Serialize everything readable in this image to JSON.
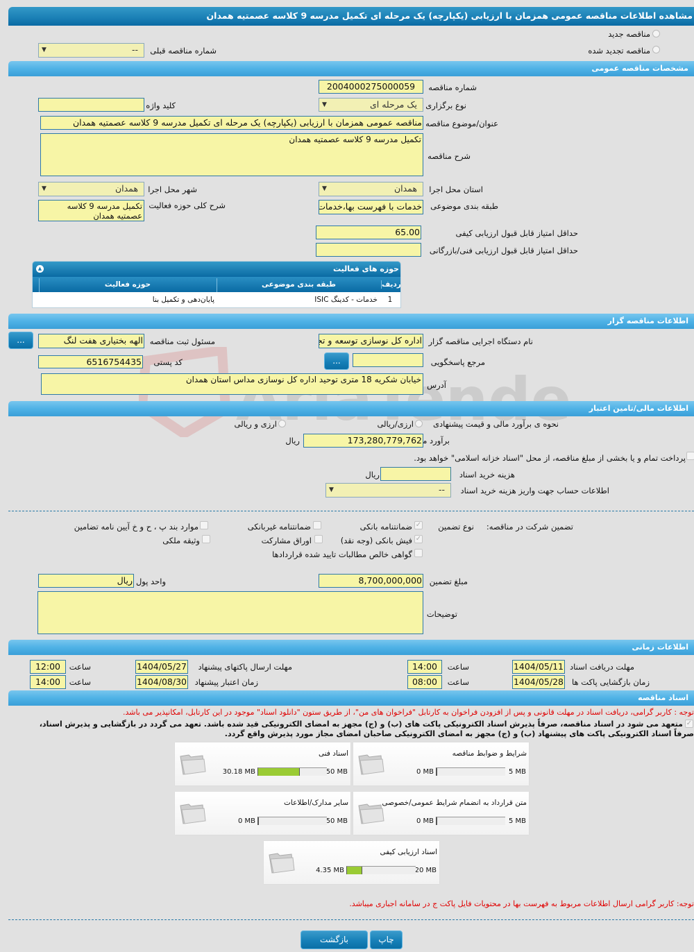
{
  "title": "مشاهده اطلاعات مناقصه عمومی همزمان با ارزیابی (یکپارچه) یک مرحله ای تکمیل مدرسه 9 کلاسه عصمتیه همدان",
  "watermark": "AriaTender.neT",
  "tender_type": {
    "new_label": "مناقصه جدید",
    "renewed_label": "مناقصه تجدید شده",
    "prev_number_label": "شماره مناقصه قبلی",
    "prev_number_value": "--"
  },
  "general": {
    "section_title": "مشخصات مناقصه عمومی",
    "number_label": "شماره مناقصه",
    "number_value": "2004000275000059",
    "holding_type_label": "نوع برگزاری",
    "holding_type_value": "یک مرحله ای",
    "keyword_label": "کلید واژه",
    "keyword_value": "",
    "subject_label": "عنوان/موضوع مناقصه",
    "subject_value": "مناقصه عمومی همزمان با ارزیابی (یکپارچه) یک مرحله ای تکمیل مدرسه 9 کلاسه عصمتیه همدان",
    "description_label": "شرح مناقصه",
    "description_value": "تکمیل مدرسه 9 کلاسه عصمتیه همدان",
    "province_label": "استان محل اجرا",
    "province_value": "همدان",
    "city_label": "شهر محل اجرا",
    "city_value": "همدان",
    "category_label": "طبقه بندی موضوعی",
    "category_value": "خدمات با فهرست بها،خدمات",
    "activity_desc_label": "شرح کلی حوزه فعالیت",
    "activity_desc_value": "تکمیل مدرسه 9 کلاسه عصمتیه همدان",
    "min_quality_label": "حداقل امتیاز قابل قبول ارزیابی کیفی",
    "min_quality_value": "65.00",
    "min_tech_label": "حداقل امتیاز قابل قبول ارزیابی فنی/بازرگانی",
    "min_tech_value": ""
  },
  "activities": {
    "title": "حوزه های فعالیت",
    "columns": [
      "ردیف",
      "طبقه بندی موضوعی",
      "حوزه فعالیت"
    ],
    "rows": [
      [
        "1",
        "خدمات - کدینگ ISIC",
        "پایان‌دهی و تکمیل بنا"
      ]
    ]
  },
  "organizer": {
    "section_title": "اطلاعات مناقصه گزار",
    "org_label": "نام دستگاه اجرایی مناقصه گزار",
    "org_value": "اداره کل نوسازی توسعه و تجهیز مدارس",
    "registrar_label": "مسئول ثبت مناقصه",
    "registrar_value": "الهه بختیاری هفت لنگ",
    "ref_label": "مرجع پاسخگویی",
    "ref_value": "",
    "postal_label": "کد پستی",
    "postal_value": "6516754435",
    "address_label": "آدرس",
    "address_value": "خیابان شکریه 18 متری توحید اداره کل نوسازی مداس استان همدان",
    "browse_label": "..."
  },
  "finance": {
    "section_title": "اطلاعات مالی/تامین اعتبار",
    "method_label": "نحوه ی برآورد مالی و قیمت پیشنهادی",
    "opt1": "ارزی/ریالی",
    "opt2": "ارزی و ریالی",
    "estimate_label": "برآورد مالی",
    "estimate_value": "173,280,779,762",
    "rial": "ریال",
    "treasury_text": "پرداخت تمام و یا بخشی از مبلغ مناقصه، از محل \"اسناد خزانه اسلامی\" خواهد بود.",
    "doc_cost_label": "هزینه خرید اسناد",
    "doc_cost_value": "",
    "account_label": "اطلاعات حساب جهت واریز هزینه خرید اسناد",
    "account_value": "--"
  },
  "guarantee": {
    "label": "تضمین شرکت در مناقصه:",
    "type_label": "نوع تضمین",
    "options": [
      {
        "label": "ضمانتنامه بانکی",
        "checked": true
      },
      {
        "label": "ضمانتنامه غیربانکی",
        "checked": false
      },
      {
        "label": "موارد بند پ ، ح و خ آیین نامه تضامین",
        "checked": false
      },
      {
        "label": "فیش بانکی (وجه نقد)",
        "checked": true
      },
      {
        "label": "اوراق مشارکت",
        "checked": false
      },
      {
        "label": "وثیقه ملکی",
        "checked": false
      },
      {
        "label": "گواهی خالص مطالبات تایید شده قراردادها",
        "checked": false
      }
    ],
    "amount_label": "مبلغ تضمین",
    "amount_value": "8,700,000,000",
    "currency_label": "واحد پول",
    "currency_value": "ریال",
    "notes_label": "توضیحات",
    "notes_value": ""
  },
  "timing": {
    "section_title": "اطلاعات زمانی",
    "hour_label": "ساعت",
    "doc_deadline_label": "مهلت دریافت اسناد",
    "doc_deadline_date": "1404/05/11",
    "doc_deadline_time": "14:00",
    "submit_deadline_label": "مهلت ارسال پاکتهای پیشنهاد",
    "submit_deadline_date": "1404/05/27",
    "submit_deadline_time": "12:00",
    "opening_label": "زمان بازگشایی پاکت ها",
    "opening_date": "1404/05/28",
    "opening_time": "08:00",
    "validity_label": "زمان اعتبار پیشنهاد",
    "validity_date": "1404/08/30",
    "validity_time": "14:00"
  },
  "documents": {
    "section_title": "اسناد مناقصه",
    "note1": "توجه : کاربر گرامی، دریافت اسناد در مهلت قانونی و پس از افزودن فراخوان به کارتابل \"فراخوان های من\"، از طریق ستون \"دانلود اسناد\" موجود در این کارتابل، امکانپذیر می باشد.",
    "commit_line1": "متعهد می شود در اسناد مناقصه، صرفاً پذیرش اسناد الکترونیکی پاکت های (ب) و (ج) مجهز به امضای الکترونیکی قید شده باشد. تعهد می گردد در بازگشایی و پذیرش اسناد،",
    "commit_line2": "صرفاً اسناد الکترونیکی پاکت های پیشنهاد (ب) و (ج) مجهز به امضای الکترونیکی صاحبان امضای مجاز مورد پذیرش واقع گردد.",
    "cards": [
      {
        "title": "شرایط و ضوابط مناقصه",
        "used": "0 MB",
        "max": "5 MB",
        "fraction": 0
      },
      {
        "title": "اسناد فنی",
        "used": "30.18 MB",
        "max": "50 MB",
        "fraction": 0.6036
      },
      {
        "title": "متن قرارداد به انضمام شرایط عمومی/خصوصی",
        "used": "0 MB",
        "max": "5 MB",
        "fraction": 0
      },
      {
        "title": "سایر مدارک/اطلاعات",
        "used": "0 MB",
        "max": "50 MB",
        "fraction": 0
      },
      {
        "title": "اسناد ارزیابی کیفی",
        "used": "4.35 MB",
        "max": "20 MB",
        "fraction": 0.2175
      }
    ],
    "note2": "توجه: کاربر گرامی ارسال اطلاعات مربوط به فهرست بها در محتویات فایل پاکت ج در سامانه اجباری میباشد."
  },
  "actions": {
    "print": "چاپ",
    "back": "بازگشت"
  }
}
